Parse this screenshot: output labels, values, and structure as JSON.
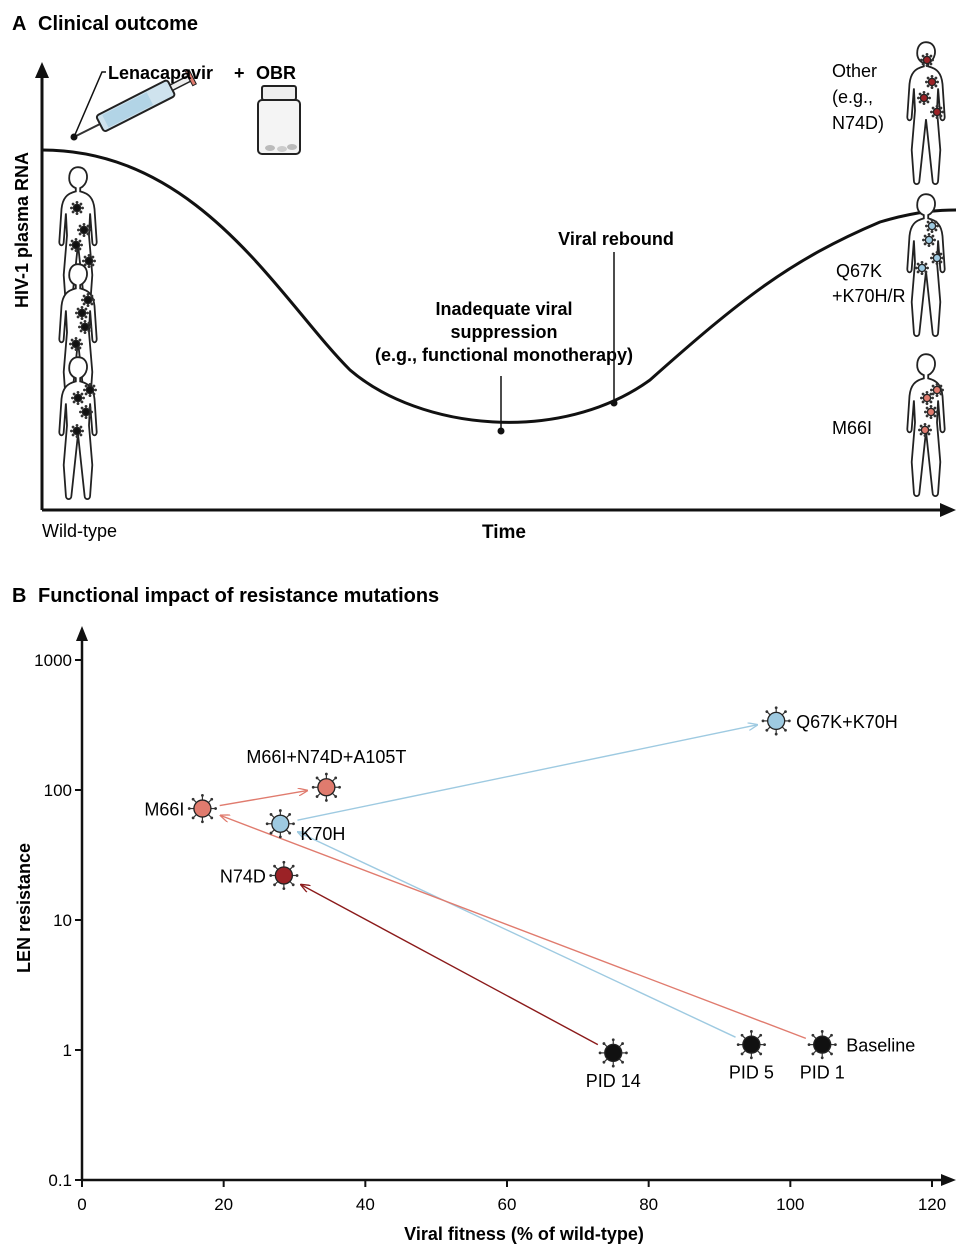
{
  "panel_a": {
    "letter": "A",
    "title": "Clinical outcome",
    "ylabel": "HIV-1 plasma RNA",
    "xlabel": "Time",
    "start_label": "Wild-type",
    "drug_label": "Lenacapavir",
    "plus": "+",
    "obr_label": "OBR",
    "annotation_low": [
      "Inadequate viral",
      "suppression",
      "(e.g., functional monotherapy)"
    ],
    "annotation_rebound": "Viral rebound",
    "outcomes": [
      {
        "lines": [
          "Other",
          "(e.g.,",
          "N74D)"
        ],
        "color": "#9b2226"
      },
      {
        "lines": [
          "Q67K",
          "+K70H/R"
        ],
        "color": "#9ecae1"
      },
      {
        "lines": [
          "M66I"
        ],
        "color": "#e07b6e"
      }
    ],
    "wildtype_virus_color": "#111111"
  },
  "chart_data": {
    "type": "scatter",
    "title": "Functional impact of resistance mutations",
    "panel_letter": "B",
    "xlabel": "Viral fitness (% of wild-type)",
    "ylabel": "LEN resistance",
    "xlim": [
      0,
      120
    ],
    "ylim": [
      0.1,
      1000
    ],
    "y_scale": "log",
    "x_ticks": [
      0,
      20,
      40,
      60,
      80,
      100,
      120
    ],
    "y_ticks": [
      0.1,
      1,
      10,
      100,
      1000
    ],
    "y_tick_labels": [
      "0.1",
      "1",
      "10",
      "100",
      "1000"
    ],
    "points": [
      {
        "id": "pid14",
        "label": "PID 14",
        "x": 75,
        "y": 0.95,
        "color": "#111111"
      },
      {
        "id": "pid5",
        "label": "PID 5",
        "x": 94.5,
        "y": 1.1,
        "color": "#111111"
      },
      {
        "id": "pid1",
        "label": "PID 1",
        "x": 104.5,
        "y": 1.1,
        "color": "#111111",
        "extra_label": "Baseline"
      },
      {
        "id": "n74d",
        "label": "N74D",
        "x": 28.5,
        "y": 22,
        "color": "#9b2226"
      },
      {
        "id": "m66i",
        "label": "M66I",
        "x": 17,
        "y": 72,
        "color": "#e07b6e"
      },
      {
        "id": "k70h",
        "label": "K70H",
        "x": 28,
        "y": 55,
        "color": "#9ecae1"
      },
      {
        "id": "m66i_n74d_a105t",
        "label": "M66I+N74D+A105T",
        "x": 34.5,
        "y": 105,
        "color": "#e07b6e"
      },
      {
        "id": "q67k_k70h",
        "label": "Q67K+K70H",
        "x": 98,
        "y": 340,
        "color": "#9ecae1"
      }
    ],
    "arrows": [
      {
        "from": "pid14",
        "to": "n74d",
        "color": "#8b1a1a"
      },
      {
        "from": "pid5",
        "to": "k70h",
        "color": "#9ecae1"
      },
      {
        "from": "pid1",
        "to": "m66i",
        "color": "#e07b6e"
      },
      {
        "from": "m66i",
        "to": "m66i_n74d_a105t",
        "color": "#e07b6e"
      },
      {
        "from": "k70h",
        "to": "q67k_k70h",
        "color": "#9ecae1"
      }
    ]
  }
}
